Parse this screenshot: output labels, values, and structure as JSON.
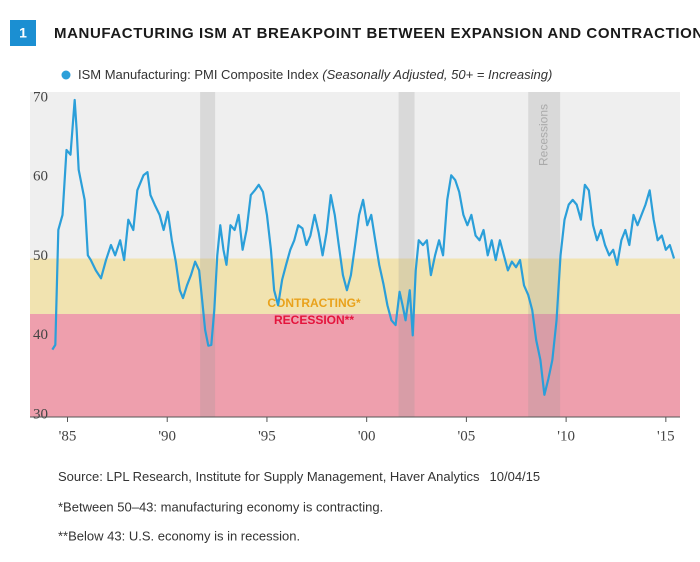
{
  "chart_number": "1",
  "chart_data": {
    "type": "line",
    "title": "MANUFACTURING ISM AT BREAKPOINT BETWEEN EXPANSION AND CONTRACTION",
    "legend_note": "(Seasonally Adjusted, 50+ = Increasing)",
    "x": [
      1984.24,
      1984.39,
      1984.54,
      1984.75,
      1984.95,
      1985.15,
      1985.36,
      1985.46,
      1985.56,
      1985.71,
      1985.86,
      1986.02,
      1986.17,
      1986.42,
      1986.68,
      1986.93,
      1987.18,
      1987.39,
      1987.64,
      1987.84,
      1988.05,
      1988.3,
      1988.5,
      1988.81,
      1989.01,
      1989.16,
      1989.37,
      1989.62,
      1989.82,
      1990.03,
      1990.23,
      1990.43,
      1990.63,
      1990.79,
      1990.99,
      1991.19,
      1991.4,
      1991.6,
      1991.75,
      1991.9,
      1992.06,
      1992.21,
      1992.36,
      1992.51,
      1992.66,
      1992.82,
      1992.97,
      1993.17,
      1993.38,
      1993.58,
      1993.78,
      1993.98,
      1994.19,
      1994.39,
      1994.59,
      1994.8,
      1995.0,
      1995.2,
      1995.36,
      1995.56,
      1995.76,
      1995.96,
      1996.17,
      1996.37,
      1996.57,
      1996.78,
      1996.98,
      1997.18,
      1997.39,
      1997.59,
      1997.79,
      1997.99,
      1998.2,
      1998.4,
      1998.6,
      1998.81,
      1999.01,
      1999.21,
      1999.42,
      1999.62,
      1999.82,
      2000.03,
      2000.23,
      2000.43,
      2000.63,
      2000.84,
      2001.04,
      2001.24,
      2001.45,
      2001.65,
      2001.8,
      2001.95,
      2002.16,
      2002.31,
      2002.46,
      2002.61,
      2002.82,
      2003.02,
      2003.22,
      2003.43,
      2003.63,
      2003.83,
      2004.04,
      2004.24,
      2004.44,
      2004.64,
      2004.85,
      2005.05,
      2005.25,
      2005.46,
      2005.66,
      2005.86,
      2006.07,
      2006.27,
      2006.47,
      2006.68,
      2006.88,
      2007.08,
      2007.28,
      2007.49,
      2007.69,
      2007.89,
      2008.1,
      2008.3,
      2008.5,
      2008.71,
      2008.91,
      2009.11,
      2009.31,
      2009.52,
      2009.72,
      2009.92,
      2010.13,
      2010.33,
      2010.53,
      2010.74,
      2010.94,
      2011.14,
      2011.35,
      2011.55,
      2011.75,
      2011.95,
      2012.16,
      2012.36,
      2012.56,
      2012.77,
      2012.97,
      2013.17,
      2013.38,
      2013.58,
      2013.78,
      2013.98,
      2014.19,
      2014.39,
      2014.59,
      2014.8,
      2015.0,
      2015.2,
      2015.41
    ],
    "series": [
      {
        "name": "ISM Manufacturing: PMI Composite Index",
        "color": "#2b9fd9",
        "values": [
          38.5,
          39.1,
          53.6,
          55.5,
          63.7,
          63.1,
          70,
          66.2,
          61.2,
          59.3,
          57.4,
          50.4,
          49.8,
          48.5,
          47.5,
          49.8,
          51.7,
          50.4,
          52.3,
          49.8,
          54.9,
          53.6,
          58.6,
          60.5,
          60.9,
          58,
          56.8,
          55.5,
          53.6,
          55.9,
          52.3,
          49.6,
          46,
          45,
          46.6,
          47.9,
          49.6,
          48.5,
          44.8,
          41,
          39,
          39.1,
          43.5,
          50.4,
          54.2,
          51.1,
          49.2,
          54.2,
          53.6,
          55.5,
          51.1,
          53.6,
          58,
          58.6,
          59.3,
          58.4,
          55.5,
          51.1,
          46,
          44.1,
          47.3,
          49.2,
          51.1,
          52.3,
          54.2,
          53.8,
          51.7,
          52.9,
          55.5,
          53.3,
          50.4,
          53.3,
          58,
          55.5,
          51.7,
          47.9,
          46,
          47.9,
          51.7,
          55.5,
          57.4,
          54.2,
          55.5,
          52.3,
          49.2,
          46.8,
          44.1,
          42.2,
          41.6,
          45.8,
          44.1,
          42.2,
          46,
          40.3,
          48.5,
          52.3,
          51.7,
          52.3,
          47.9,
          50.4,
          52.3,
          50.4,
          57.4,
          60.5,
          59.9,
          58.4,
          55.5,
          54.2,
          55.5,
          52.9,
          52.3,
          53.6,
          50.4,
          52.3,
          49.8,
          52.3,
          50.4,
          48.5,
          49.6,
          48.9,
          49.8,
          46.6,
          45.4,
          43.5,
          39.7,
          37.2,
          32.8,
          34.8,
          37.2,
          42.2,
          50.4,
          54.9,
          56.8,
          57.4,
          56.8,
          54.9,
          59.3,
          58.6,
          54.2,
          52.3,
          53.6,
          51.7,
          50.4,
          51.1,
          49.2,
          52.3,
          53.6,
          51.7,
          55.5,
          54.2,
          55.5,
          56.8,
          58.6,
          54.9,
          52.3,
          52.9,
          51.1,
          51.7,
          50.0
        ]
      }
    ],
    "xlim": [
      1983.12,
      2015.71
    ],
    "ylim": [
      30,
      70
    ],
    "xticks": [
      {
        "value": 1985,
        "label": "'85"
      },
      {
        "value": 1990,
        "label": "'90"
      },
      {
        "value": 1995,
        "label": "'95"
      },
      {
        "value": 2000,
        "label": "'00"
      },
      {
        "value": 2005,
        "label": "'05"
      },
      {
        "value": 2010,
        "label": "'10"
      },
      {
        "value": 2015,
        "label": "'15"
      }
    ],
    "yticks": [
      30,
      40,
      50,
      60,
      70
    ],
    "recessions_label": "Recessions",
    "recessions": [
      [
        1991.65,
        1992.4
      ],
      [
        2001.6,
        2002.4
      ],
      [
        2008.1,
        2009.7
      ]
    ],
    "zones": [
      {
        "label": "CONTRACTING*",
        "from": 43,
        "to": 50,
        "color": "#f1e3b0",
        "label_color": "#e9a21c"
      },
      {
        "label": "RECESSION**",
        "from": 30,
        "to": 43,
        "color": "#ee9fad",
        "label_color": "#e4143c"
      }
    ]
  },
  "footer": {
    "source": "Source: LPL Research, Institute for Supply Management, Haver Analytics",
    "date": "10/04/15",
    "notes": [
      "*Between 50–43: manufacturing economy is contracting.",
      "**Below 43: U.S. economy is in recession."
    ]
  }
}
